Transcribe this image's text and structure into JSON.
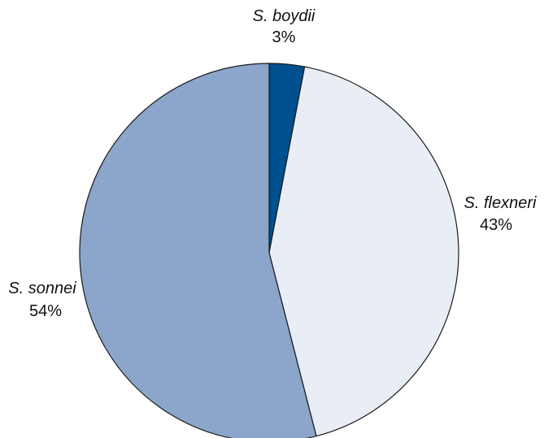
{
  "chart_data": {
    "type": "pie",
    "start_angle_deg": 0,
    "direction": "clockwise",
    "slices": [
      {
        "name": "S. boydii",
        "value": 3,
        "label": "3%",
        "color": "#00508f"
      },
      {
        "name": "S. flexneri",
        "value": 43,
        "label": "43%",
        "color": "#e9edf6"
      },
      {
        "name": "S. sonnei",
        "value": 54,
        "label": "54%",
        "color": "#8ba5cb"
      }
    ],
    "legend": "none",
    "labels_placement": "outside"
  }
}
